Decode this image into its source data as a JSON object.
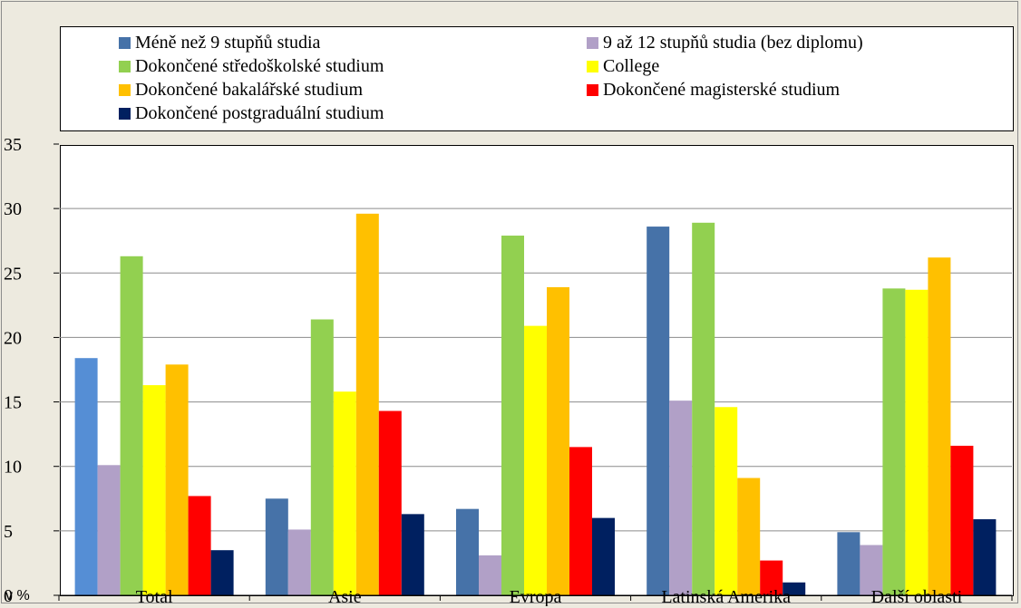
{
  "chart_data": {
    "type": "bar",
    "categories": [
      "Total",
      "Asie",
      "Evropa",
      "Latinská Amerika",
      "Další oblasti"
    ],
    "series": [
      {
        "name": "Méně než 9 stupňů studia",
        "color": "#4672A8",
        "values": [
          18.4,
          7.5,
          6.7,
          28.6,
          4.9
        ]
      },
      {
        "name": "9 až 12 stupňů studia (bez diplomu)",
        "color": "#B1A0C7",
        "values": [
          10.1,
          5.1,
          3.1,
          15.1,
          3.9
        ]
      },
      {
        "name": "Dokončené středoškolské studium",
        "color": "#92D050",
        "values": [
          26.3,
          21.4,
          27.9,
          28.9,
          23.8
        ]
      },
      {
        "name": "College",
        "color": "#FFFF00",
        "values": [
          16.3,
          15.8,
          20.9,
          14.6,
          23.7
        ]
      },
      {
        "name": "Dokončené bakalářské studium",
        "color": "#FFC000",
        "values": [
          17.9,
          29.6,
          23.9,
          9.1,
          26.2
        ]
      },
      {
        "name": "Dokončené magisterské studium",
        "color": "#FF0000",
        "values": [
          7.7,
          14.3,
          11.5,
          2.7,
          11.6
        ]
      },
      {
        "name": "Dokončené postgraduální studium",
        "color": "#002060",
        "values": [
          3.5,
          6.3,
          6.0,
          1.0,
          5.9
        ]
      }
    ],
    "first_category_highlight_color": "#558ED5",
    "ylim": [
      0,
      35
    ],
    "yticks": [
      "0",
      "5",
      "10",
      "15",
      "20",
      "25",
      "30",
      "35"
    ],
    "unit_label": "v %",
    "grid": "horizontal",
    "legend_position": "top"
  }
}
